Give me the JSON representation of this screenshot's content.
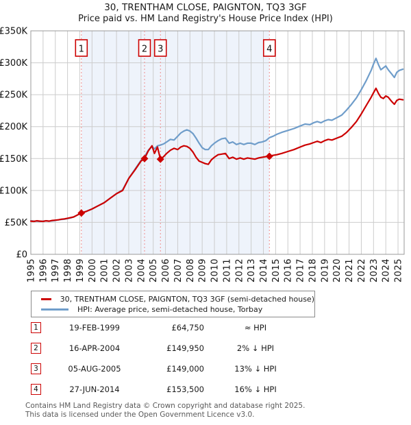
{
  "header": {
    "title": "30, TRENTHAM CLOSE, PAIGNTON, TQ3 3GF",
    "subtitle": "Price paid vs. HM Land Registry's House Price Index (HPI)"
  },
  "chart_data": {
    "type": "line",
    "unit": "GBP thousands",
    "x_range": [
      1995,
      2025.5
    ],
    "ylim": [
      0,
      350
    ],
    "y_ticks": [
      "£0",
      "£50K",
      "£100K",
      "£150K",
      "£200K",
      "£250K",
      "£300K",
      "£350K"
    ],
    "x_ticks": [
      1995,
      1996,
      1997,
      1998,
      1999,
      2000,
      2001,
      2002,
      2003,
      2004,
      2005,
      2006,
      2007,
      2008,
      2009,
      2010,
      2011,
      2012,
      2013,
      2014,
      2015,
      2016,
      2017,
      2018,
      2019,
      2020,
      2021,
      2022,
      2023,
      2024,
      2025
    ],
    "x": [
      1995.0,
      1995.25,
      1995.5,
      1995.75,
      1996.0,
      1996.25,
      1996.5,
      1996.75,
      1997.0,
      1997.25,
      1997.5,
      1997.75,
      1998.0,
      1998.25,
      1998.5,
      1998.75,
      1999.13,
      1999.5,
      2000.0,
      2000.5,
      2001.0,
      2001.5,
      2002.0,
      2002.5,
      2003.0,
      2003.5,
      2004.0,
      2004.29,
      2004.6,
      2004.9,
      2005.1,
      2005.35,
      2005.59,
      2005.85,
      2006.1,
      2006.4,
      2006.7,
      2007.0,
      2007.25,
      2007.5,
      2007.75,
      2008.0,
      2008.25,
      2008.5,
      2008.75,
      2009.0,
      2009.25,
      2009.5,
      2009.75,
      2010.0,
      2010.3,
      2010.6,
      2010.9,
      2011.2,
      2011.5,
      2011.8,
      2012.1,
      2012.4,
      2012.7,
      2013.0,
      2013.3,
      2013.6,
      2013.9,
      2014.2,
      2014.49,
      2014.8,
      2015.1,
      2015.5,
      2016.0,
      2016.5,
      2017.0,
      2017.4,
      2017.8,
      2018.1,
      2018.4,
      2018.7,
      2019.0,
      2019.3,
      2019.6,
      2020.0,
      2020.4,
      2020.8,
      2021.2,
      2021.6,
      2022.0,
      2022.4,
      2022.8,
      2023.0,
      2023.2,
      2023.4,
      2023.6,
      2023.8,
      2024.0,
      2024.2,
      2024.5,
      2024.7,
      2024.9,
      2025.1,
      2025.4
    ],
    "series": [
      {
        "name": "HPI: Average price, semi-detached house, Torbay",
        "color": "#6f9dca",
        "values": [
          52.5,
          52.0,
          52.0,
          51.5,
          52.0,
          52.5,
          52.0,
          52.5,
          53.0,
          54.0,
          54.5,
          55.0,
          56.0,
          57.0,
          58.5,
          61.0,
          65.0,
          67.0,
          71.0,
          76.0,
          81.0,
          88.0,
          95.0,
          101.0,
          119.0,
          133.0,
          147.0,
          153.0,
          163.0,
          169.0,
          165.0,
          170.0,
          171.0,
          173.0,
          176.0,
          180.0,
          179.0,
          185.0,
          190.0,
          193.0,
          195.0,
          193.0,
          189.0,
          182.0,
          174.0,
          167.0,
          164.0,
          164.0,
          170.0,
          174.0,
          178.0,
          181.0,
          182.0,
          174.0,
          176.0,
          172.0,
          174.0,
          172.0,
          174.0,
          174.0,
          172.0,
          175.0,
          176.0,
          178.0,
          182.7,
          185.0,
          188.0,
          191.0,
          194.0,
          197.0,
          201.0,
          204.0,
          203.0,
          206.0,
          208.0,
          206.0,
          209.0,
          211.0,
          210.0,
          214.0,
          218.0,
          226.0,
          235.0,
          245.0,
          258.0,
          272.0,
          288.0,
          298.0,
          307.0,
          297.0,
          289.0,
          292.0,
          295.0,
          289.0,
          282.0,
          277.0,
          285.0,
          288.0,
          290.0
        ]
      },
      {
        "name": "30, TRENTHAM CLOSE, PAIGNTON, TQ3 3GF (semi-detached house)",
        "color": "#cc0000",
        "values": [
          52.0,
          51.5,
          52.5,
          52.0,
          51.5,
          52.5,
          52.0,
          53.0,
          53.5,
          54.0,
          55.0,
          55.5,
          56.5,
          57.5,
          58.5,
          61.0,
          64.75,
          67.0,
          71.0,
          76.0,
          81.0,
          88.0,
          95.0,
          100.0,
          119.0,
          132.0,
          146.0,
          149.95,
          162.0,
          170.0,
          158.0,
          168.0,
          149.0,
          153.0,
          158.0,
          163.0,
          166.0,
          164.0,
          168.0,
          170.0,
          169.0,
          166.0,
          160.0,
          152.0,
          146.0,
          144.0,
          142.0,
          141.0,
          148.0,
          152.0,
          156.0,
          157.0,
          158.0,
          150.0,
          152.0,
          149.0,
          151.0,
          149.0,
          151.0,
          150.0,
          149.0,
          151.0,
          152.0,
          153.0,
          153.5,
          155.0,
          156.0,
          158.0,
          161.0,
          164.0,
          168.0,
          171.0,
          173.0,
          175.0,
          177.0,
          175.0,
          178.0,
          180.0,
          179.0,
          182.0,
          185.0,
          191.0,
          199.0,
          208.0,
          220.0,
          233.0,
          246.0,
          253.0,
          260.0,
          252.0,
          246.0,
          244.0,
          248.0,
          246.0,
          239.0,
          235.0,
          241.0,
          243.0,
          242.0
        ]
      }
    ],
    "shaded_region": {
      "from": 1999.13,
      "to": 2014.49
    },
    "sales": [
      {
        "n": "1",
        "year": 1999.13,
        "price_k": 64.75
      },
      {
        "n": "2",
        "year": 2004.29,
        "price_k": 149.95
      },
      {
        "n": "3",
        "year": 2005.59,
        "price_k": 149.0
      },
      {
        "n": "4",
        "year": 2014.49,
        "price_k": 153.5
      }
    ],
    "colors": {
      "price_line": "#cc0000",
      "hpi_line": "#6f9dca",
      "grid": "#cccccc",
      "plot_border": "#999999",
      "shade": "#eef3fb",
      "sale_dashed": "#f08c8c",
      "marker_box_border": "#cc0000",
      "tick_text": "#111111"
    },
    "legend_position": "bottom",
    "grid": true
  },
  "legend": {
    "items": [
      {
        "label": "30, TRENTHAM CLOSE, PAIGNTON, TQ3 3GF (semi-detached house)",
        "color": "#cc0000"
      },
      {
        "label": "HPI: Average price, semi-detached house, Torbay",
        "color": "#6f9dca"
      }
    ]
  },
  "table": {
    "rows": [
      {
        "num": "1",
        "date": "19-FEB-1999",
        "price": "£64,750",
        "delta": "≈ HPI"
      },
      {
        "num": "2",
        "date": "16-APR-2004",
        "price": "£149,950",
        "delta": "2% ↓ HPI"
      },
      {
        "num": "3",
        "date": "05-AUG-2005",
        "price": "£149,000",
        "delta": "13% ↓ HPI"
      },
      {
        "num": "4",
        "date": "27-JUN-2014",
        "price": "£153,500",
        "delta": "16% ↓ HPI"
      }
    ]
  },
  "footer": {
    "line1": "Contains HM Land Registry data © Crown copyright and database right 2025.",
    "line2": "This data is licensed under the Open Government Licence v3.0."
  }
}
